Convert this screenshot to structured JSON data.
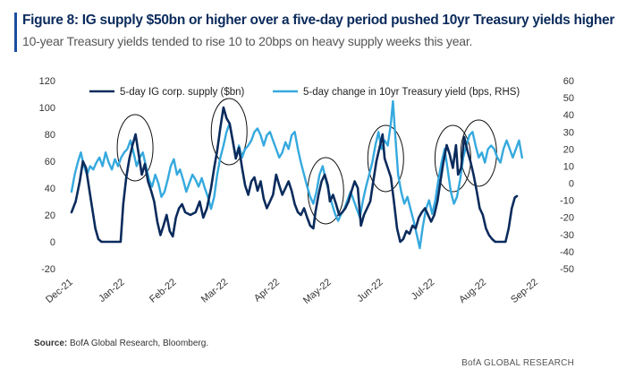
{
  "header": {
    "title": "Figure 8: IG supply $50bn or higher over a five-day period pushed 10yr Treasury yields higher",
    "subtitle": "10-year Treasury yields tended to rise 10 to 20bps on heavy supply weeks this year.",
    "accent_color": "#1a4fa0"
  },
  "footer": {
    "source_label": "Source:",
    "source_text": " BofA Global Research, Bloomberg.",
    "brand": "BofA GLOBAL RESEARCH"
  },
  "chart_data": {
    "type": "line",
    "title": "Figure 8: IG supply $50bn or higher over a five-day period pushed 10yr Treasury yields higher",
    "subtitle": "10-year Treasury yields tended to rise 10 to 20bps on heavy supply weeks this year.",
    "x_tick_labels": [
      "Dec-21",
      "Jan-22",
      "Feb-22",
      "Mar-22",
      "Apr-22",
      "May-22",
      "Jun-22",
      "Jul-22",
      "Aug-22",
      "Sep-22"
    ],
    "x_range": [
      0,
      9
    ],
    "y_left": {
      "ylim": [
        -20,
        120
      ],
      "ticks": [
        -20,
        0,
        20,
        40,
        60,
        80,
        100,
        120
      ]
    },
    "y_right": {
      "ylim": [
        -50,
        60
      ],
      "ticks": [
        -50,
        -40,
        -30,
        -20,
        -10,
        0,
        10,
        20,
        30,
        40,
        50,
        60
      ]
    },
    "grid": false,
    "legend_placement": "top",
    "series": [
      {
        "name": "5-day IG corp. supply ($bn)",
        "axis": "left",
        "color": "#0b2b5c",
        "points": [
          [
            0.0,
            22
          ],
          [
            0.08,
            30
          ],
          [
            0.16,
            45
          ],
          [
            0.22,
            60
          ],
          [
            0.28,
            55
          ],
          [
            0.34,
            40
          ],
          [
            0.4,
            25
          ],
          [
            0.46,
            10
          ],
          [
            0.52,
            2
          ],
          [
            0.58,
            0
          ],
          [
            0.7,
            0
          ],
          [
            0.85,
            0
          ],
          [
            0.95,
            0
          ],
          [
            1.0,
            28
          ],
          [
            1.06,
            48
          ],
          [
            1.12,
            62
          ],
          [
            1.18,
            72
          ],
          [
            1.24,
            80
          ],
          [
            1.3,
            65
          ],
          [
            1.36,
            50
          ],
          [
            1.42,
            58
          ],
          [
            1.48,
            45
          ],
          [
            1.54,
            38
          ],
          [
            1.6,
            30
          ],
          [
            1.66,
            15
          ],
          [
            1.72,
            5
          ],
          [
            1.78,
            12
          ],
          [
            1.84,
            20
          ],
          [
            1.9,
            8
          ],
          [
            1.96,
            4
          ],
          [
            2.02,
            18
          ],
          [
            2.08,
            25
          ],
          [
            2.14,
            28
          ],
          [
            2.2,
            22
          ],
          [
            2.3,
            20
          ],
          [
            2.4,
            22
          ],
          [
            2.48,
            30
          ],
          [
            2.55,
            18
          ],
          [
            2.62,
            25
          ],
          [
            2.7,
            40
          ],
          [
            2.76,
            55
          ],
          [
            2.82,
            68
          ],
          [
            2.88,
            85
          ],
          [
            2.94,
            100
          ],
          [
            3.0,
            92
          ],
          [
            3.06,
            88
          ],
          [
            3.12,
            75
          ],
          [
            3.18,
            62
          ],
          [
            3.24,
            70
          ],
          [
            3.3,
            55
          ],
          [
            3.36,
            42
          ],
          [
            3.42,
            35
          ],
          [
            3.48,
            45
          ],
          [
            3.54,
            48
          ],
          [
            3.6,
            38
          ],
          [
            3.66,
            45
          ],
          [
            3.72,
            32
          ],
          [
            3.78,
            25
          ],
          [
            3.84,
            30
          ],
          [
            3.9,
            35
          ],
          [
            3.96,
            50
          ],
          [
            4.02,
            42
          ],
          [
            4.08,
            35
          ],
          [
            4.14,
            40
          ],
          [
            4.2,
            45
          ],
          [
            4.26,
            38
          ],
          [
            4.32,
            28
          ],
          [
            4.38,
            22
          ],
          [
            4.44,
            20
          ],
          [
            4.5,
            25
          ],
          [
            4.56,
            18
          ],
          [
            4.62,
            12
          ],
          [
            4.68,
            10
          ],
          [
            4.72,
            22
          ],
          [
            4.78,
            35
          ],
          [
            4.84,
            45
          ],
          [
            4.9,
            50
          ],
          [
            4.96,
            42
          ],
          [
            5.0,
            30
          ],
          [
            5.06,
            35
          ],
          [
            5.12,
            28
          ],
          [
            5.18,
            20
          ],
          [
            5.24,
            22
          ],
          [
            5.3,
            25
          ],
          [
            5.36,
            30
          ],
          [
            5.42,
            38
          ],
          [
            5.48,
            45
          ],
          [
            5.54,
            40
          ],
          [
            5.6,
            12
          ],
          [
            5.66,
            20
          ],
          [
            5.72,
            25
          ],
          [
            5.78,
            30
          ],
          [
            5.84,
            45
          ],
          [
            5.9,
            60
          ],
          [
            5.96,
            70
          ],
          [
            6.02,
            80
          ],
          [
            6.06,
            62
          ],
          [
            6.12,
            55
          ],
          [
            6.18,
            48
          ],
          [
            6.24,
            30
          ],
          [
            6.3,
            10
          ],
          [
            6.36,
            0
          ],
          [
            6.42,
            2
          ],
          [
            6.48,
            8
          ],
          [
            6.54,
            6
          ],
          [
            6.6,
            12
          ],
          [
            6.66,
            10
          ],
          [
            6.72,
            18
          ],
          [
            6.78,
            22
          ],
          [
            6.84,
            25
          ],
          [
            6.9,
            20
          ],
          [
            6.96,
            15
          ],
          [
            7.02,
            20
          ],
          [
            7.08,
            30
          ],
          [
            7.14,
            45
          ],
          [
            7.2,
            60
          ],
          [
            7.26,
            72
          ],
          [
            7.32,
            65
          ],
          [
            7.38,
            55
          ],
          [
            7.44,
            72
          ],
          [
            7.48,
            50
          ],
          [
            7.54,
            55
          ],
          [
            7.6,
            78
          ],
          [
            7.66,
            68
          ],
          [
            7.72,
            60
          ],
          [
            7.78,
            50
          ],
          [
            7.84,
            38
          ],
          [
            7.9,
            25
          ],
          [
            7.96,
            20
          ],
          [
            8.02,
            10
          ],
          [
            8.08,
            5
          ],
          [
            8.14,
            2
          ],
          [
            8.2,
            0
          ],
          [
            8.3,
            0
          ],
          [
            8.4,
            0
          ],
          [
            8.46,
            10
          ],
          [
            8.52,
            25
          ],
          [
            8.58,
            33
          ],
          [
            8.62,
            34
          ]
        ]
      },
      {
        "name": "5-day change in 10yr Treasury yield (bps, RHS)",
        "axis": "right",
        "color": "#35a9de",
        "points": [
          [
            0.0,
            -5
          ],
          [
            0.06,
            5
          ],
          [
            0.12,
            12
          ],
          [
            0.18,
            18
          ],
          [
            0.24,
            10
          ],
          [
            0.3,
            5
          ],
          [
            0.36,
            10
          ],
          [
            0.42,
            8
          ],
          [
            0.48,
            12
          ],
          [
            0.54,
            15
          ],
          [
            0.6,
            10
          ],
          [
            0.66,
            18
          ],
          [
            0.72,
            12
          ],
          [
            0.78,
            8
          ],
          [
            0.84,
            14
          ],
          [
            0.9,
            10
          ],
          [
            0.96,
            15
          ],
          [
            1.02,
            18
          ],
          [
            1.08,
            20
          ],
          [
            1.14,
            25
          ],
          [
            1.2,
            18
          ],
          [
            1.26,
            10
          ],
          [
            1.32,
            15
          ],
          [
            1.38,
            18
          ],
          [
            1.44,
            10
          ],
          [
            1.5,
            2
          ],
          [
            1.56,
            -2
          ],
          [
            1.62,
            5
          ],
          [
            1.68,
            0
          ],
          [
            1.74,
            -8
          ],
          [
            1.8,
            -5
          ],
          [
            1.86,
            2
          ],
          [
            1.92,
            10
          ],
          [
            1.98,
            14
          ],
          [
            2.04,
            5
          ],
          [
            2.1,
            8
          ],
          [
            2.16,
            2
          ],
          [
            2.22,
            -5
          ],
          [
            2.28,
            0
          ],
          [
            2.34,
            5
          ],
          [
            2.4,
            2
          ],
          [
            2.46,
            -2
          ],
          [
            2.52,
            3
          ],
          [
            2.58,
            -3
          ],
          [
            2.64,
            -8
          ],
          [
            2.7,
            -15
          ],
          [
            2.76,
            -8
          ],
          [
            2.82,
            5
          ],
          [
            2.88,
            15
          ],
          [
            2.94,
            22
          ],
          [
            3.0,
            30
          ],
          [
            3.06,
            35
          ],
          [
            3.12,
            25
          ],
          [
            3.18,
            15
          ],
          [
            3.24,
            22
          ],
          [
            3.3,
            15
          ],
          [
            3.36,
            20
          ],
          [
            3.42,
            22
          ],
          [
            3.48,
            25
          ],
          [
            3.54,
            30
          ],
          [
            3.6,
            32
          ],
          [
            3.66,
            28
          ],
          [
            3.72,
            22
          ],
          [
            3.78,
            28
          ],
          [
            3.84,
            30
          ],
          [
            3.9,
            25
          ],
          [
            3.96,
            20
          ],
          [
            4.02,
            15
          ],
          [
            4.08,
            18
          ],
          [
            4.14,
            24
          ],
          [
            4.2,
            20
          ],
          [
            4.26,
            28
          ],
          [
            4.32,
            30
          ],
          [
            4.38,
            20
          ],
          [
            4.44,
            12
          ],
          [
            4.5,
            5
          ],
          [
            4.56,
            -2
          ],
          [
            4.62,
            -8
          ],
          [
            4.68,
            -12
          ],
          [
            4.74,
            -5
          ],
          [
            4.8,
            5
          ],
          [
            4.86,
            10
          ],
          [
            4.92,
            2
          ],
          [
            4.98,
            -5
          ],
          [
            5.04,
            -12
          ],
          [
            5.1,
            -18
          ],
          [
            5.16,
            -22
          ],
          [
            5.22,
            -18
          ],
          [
            5.28,
            -15
          ],
          [
            5.34,
            -10
          ],
          [
            5.4,
            -5
          ],
          [
            5.46,
            -10
          ],
          [
            5.52,
            -15
          ],
          [
            5.58,
            -20
          ],
          [
            5.64,
            -10
          ],
          [
            5.7,
            -2
          ],
          [
            5.76,
            5
          ],
          [
            5.82,
            12
          ],
          [
            5.88,
            22
          ],
          [
            5.94,
            30
          ],
          [
            6.0,
            20
          ],
          [
            6.06,
            25
          ],
          [
            6.12,
            22
          ],
          [
            6.18,
            35
          ],
          [
            6.22,
            48
          ],
          [
            6.26,
            30
          ],
          [
            6.32,
            5
          ],
          [
            6.38,
            -5
          ],
          [
            6.44,
            -12
          ],
          [
            6.5,
            -8
          ],
          [
            6.56,
            -15
          ],
          [
            6.62,
            -22
          ],
          [
            6.68,
            -30
          ],
          [
            6.74,
            -38
          ],
          [
            6.8,
            -25
          ],
          [
            6.86,
            -15
          ],
          [
            6.92,
            -10
          ],
          [
            6.98,
            -18
          ],
          [
            7.04,
            -10
          ],
          [
            7.1,
            2
          ],
          [
            7.16,
            12
          ],
          [
            7.22,
            20
          ],
          [
            7.28,
            8
          ],
          [
            7.34,
            -5
          ],
          [
            7.4,
            -12
          ],
          [
            7.46,
            -8
          ],
          [
            7.52,
            2
          ],
          [
            7.58,
            15
          ],
          [
            7.64,
            22
          ],
          [
            7.7,
            28
          ],
          [
            7.76,
            30
          ],
          [
            7.82,
            22
          ],
          [
            7.88,
            15
          ],
          [
            7.94,
            18
          ],
          [
            8.0,
            12
          ],
          [
            8.06,
            20
          ],
          [
            8.12,
            22
          ],
          [
            8.18,
            20
          ],
          [
            8.24,
            15
          ],
          [
            8.3,
            12
          ],
          [
            8.36,
            20
          ],
          [
            8.42,
            25
          ],
          [
            8.48,
            20
          ],
          [
            8.54,
            15
          ],
          [
            8.6,
            20
          ],
          [
            8.66,
            25
          ],
          [
            8.72,
            15
          ]
        ]
      }
    ],
    "highlight_ellipses_note": "circled clusters of heavy supply weeks",
    "highlight_ellipses": [
      {
        "cx": 1.23,
        "cy": 70
      },
      {
        "cx": 3.05,
        "cy": 82
      },
      {
        "cx": 4.92,
        "cy": 38
      },
      {
        "cx": 6.08,
        "cy": 62
      },
      {
        "cx": 7.38,
        "cy": 62
      },
      {
        "cx": 7.88,
        "cy": 66
      }
    ]
  }
}
